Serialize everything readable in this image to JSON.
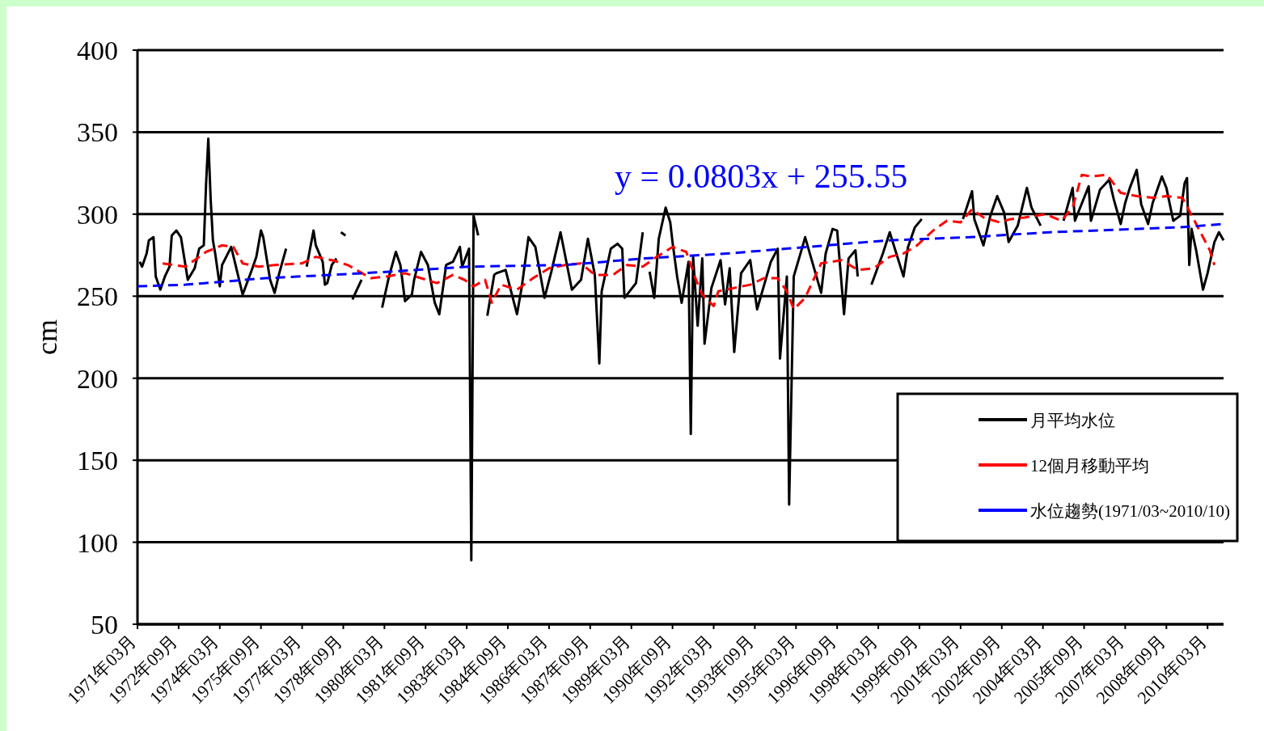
{
  "chart_data": {
    "type": "line",
    "ylabel": "cm",
    "annotations": [
      "y = 0.0803x + 255.55"
    ],
    "xlim": [
      "1971-03",
      "2010-10"
    ],
    "xticks": [
      {
        "value": "1971-03",
        "label": "1971年03月"
      },
      {
        "value": "1972-09",
        "label": "1972年09月"
      },
      {
        "value": "1974-03",
        "label": "1974年03月"
      },
      {
        "value": "1975-09",
        "label": "1975年09月"
      },
      {
        "value": "1977-03",
        "label": "1977年03月"
      },
      {
        "value": "1978-09",
        "label": "1978年09月"
      },
      {
        "value": "1980-03",
        "label": "1980年03月"
      },
      {
        "value": "1981-09",
        "label": "1981年09月"
      },
      {
        "value": "1983-03",
        "label": "1983年03月"
      },
      {
        "value": "1984-09",
        "label": "1984年09月"
      },
      {
        "value": "1986-03",
        "label": "1986年03月"
      },
      {
        "value": "1987-09",
        "label": "1987年09月"
      },
      {
        "value": "1989-03",
        "label": "1989年03月"
      },
      {
        "value": "1990-09",
        "label": "1990年09月"
      },
      {
        "value": "1992-03",
        "label": "1992年03月"
      },
      {
        "value": "1993-09",
        "label": "1993年09月"
      },
      {
        "value": "1995-03",
        "label": "1995年03月"
      },
      {
        "value": "1996-09",
        "label": "1996年09月"
      },
      {
        "value": "1998-03",
        "label": "1998年03月"
      },
      {
        "value": "1999-09",
        "label": "1999年09月"
      },
      {
        "value": "2001-03",
        "label": "2001年03月"
      },
      {
        "value": "2002-09",
        "label": "2002年09月"
      },
      {
        "value": "2004-03",
        "label": "2004年03月"
      },
      {
        "value": "2005-09",
        "label": "2005年09月"
      },
      {
        "value": "2007-03",
        "label": "2007年03月"
      },
      {
        "value": "2008-09",
        "label": "2008年09月"
      },
      {
        "value": "2010-03",
        "label": "2010年03月"
      }
    ],
    "ylim": [
      50,
      400
    ],
    "yticks": [
      50,
      100,
      150,
      200,
      250,
      300,
      350,
      400
    ],
    "grid": "y",
    "legend": "bottom right",
    "marker": "none",
    "series": [
      {
        "name": "月平均水位",
        "color": "#000000",
        "line_style": "solid",
        "x": [
          "1971-04",
          "1971-05",
          "1971-07",
          "1971-08",
          "1971-10",
          "1971-11",
          "1972-01",
          "1972-03",
          "1972-05",
          "1972-06",
          "1972-08",
          "1972-10",
          "1973-01",
          "1973-04",
          "1973-06",
          "1973-08",
          "1973-09",
          "1973-10",
          "1973-11",
          "1973-12",
          "1974-01",
          "1974-03",
          "1974-04",
          "1974-08",
          "1975-01",
          "1975-05",
          "1975-07",
          "1975-09",
          "1975-10",
          "1976-01",
          "1976-03",
          "1976-05",
          "1976-08",
          "1976-09",
          "1977-05",
          "1977-08",
          "1977-09",
          "1977-12",
          "1978-01",
          "1978-02",
          "1978-04",
          "1978-06",
          "1978-07",
          "1978-08",
          "1978-10",
          "1978-11",
          "1979-01",
          "1979-03",
          "1979-05",
          "1979-06",
          "1980-02",
          "1980-05",
          "1980-08",
          "1980-10",
          "1980-12",
          "1981-03",
          "1981-04",
          "1981-07",
          "1981-10",
          "1982-01",
          "1982-03",
          "1982-06",
          "1982-09",
          "1982-12",
          "1983-01",
          "1983-04",
          "1983-05",
          "1983-06",
          "1983-08",
          "1983-09",
          "1983-12",
          "1984-03",
          "1984-04",
          "1984-08",
          "1985-01",
          "1985-03",
          "1985-06",
          "1985-09",
          "1986-01",
          "1986-04",
          "1986-08",
          "1987-01",
          "1987-05",
          "1987-08",
          "1987-11",
          "1988-01",
          "1988-02",
          "1988-06",
          "1988-09",
          "1988-11",
          "1988-12",
          "1989-05",
          "1989-08",
          "1989-09",
          "1989-11",
          "1990-01",
          "1990-03",
          "1990-06",
          "1990-08",
          "1990-09",
          "1990-11",
          "1991-01",
          "1991-04",
          "1991-05",
          "1991-06",
          "1991-08",
          "1991-10",
          "1991-11",
          "1992-02",
          "1992-06",
          "1992-08",
          "1992-10",
          "1992-12",
          "1993-03",
          "1993-07",
          "1993-10",
          "1994-04",
          "1994-07",
          "1994-08",
          "1994-11",
          "1994-12",
          "1995-02",
          "1995-06",
          "1995-07",
          "1996-02",
          "1996-04",
          "1996-07",
          "1996-09",
          "1996-12",
          "1997-02",
          "1997-05",
          "1997-06",
          "1997-07",
          "1997-12",
          "1998-05",
          "1998-08",
          "1999-02",
          "1999-04",
          "1999-07",
          "1999-10",
          "1999-11",
          "2001-04",
          "2001-08",
          "2001-09",
          "2002-01",
          "2002-04",
          "2002-07",
          "2002-10",
          "2002-12",
          "2003-04",
          "2003-08",
          "2003-10",
          "2004-02",
          "2004-03",
          "2004-12",
          "2005-04",
          "2005-05",
          "2005-11",
          "2005-12",
          "2006-04",
          "2006-08",
          "2006-10",
          "2007-01",
          "2007-03",
          "2007-05",
          "2007-08",
          "2007-10",
          "2008-01",
          "2008-03",
          "2008-07",
          "2008-09",
          "2008-12",
          "2009-03",
          "2009-05",
          "2009-06",
          "2009-07",
          "2009-08",
          "2009-10",
          "2010-01",
          "2010-03",
          "2010-06",
          "2010-08",
          "2010-10"
        ],
        "values": [
          271,
          268,
          276,
          284,
          286,
          262,
          254,
          262,
          268,
          287,
          290,
          286,
          260,
          267,
          279,
          281,
          318,
          346,
          309,
          284,
          276,
          256,
          269,
          280,
          251,
          266,
          274,
          290,
          286,
          260,
          252,
          264,
          279,
          null,
          268,
          290,
          281,
          271,
          257,
          258,
          269,
          273,
          null,
          289,
          287,
          null,
          248,
          254,
          260,
          null,
          243,
          262,
          277,
          269,
          247,
          251,
          260,
          277,
          269,
          246,
          239,
          269,
          271,
          280,
          268,
          279,
          89,
          299,
          287,
          null,
          238,
          263,
          264,
          266,
          239,
          255,
          286,
          280,
          249,
          265,
          289,
          254,
          260,
          285,
          263,
          209,
          253,
          279,
          282,
          279,
          249,
          258,
          289,
          null,
          265,
          249,
          285,
          304,
          295,
          283,
          262,
          246,
          271,
          166,
          274,
          232,
          273,
          221,
          255,
          272,
          245,
          267,
          216,
          264,
          272,
          242,
          271,
          279,
          212,
          262,
          123,
          262,
          281,
          286,
          252,
          276,
          291,
          290,
          239,
          273,
          278,
          262,
          null,
          257,
          276,
          289,
          262,
          280,
          292,
          297,
          null,
          297,
          314,
          297,
          281,
          299,
          311,
          301,
          283,
          293,
          316,
          304,
          293,
          null,
          296,
          316,
          296,
          317,
          296,
          315,
          321,
          309,
          294,
          307,
          316,
          327,
          306,
          294,
          307,
          323,
          316,
          296,
          299,
          319,
          322,
          269,
          291,
          278,
          254,
          264,
          283,
          289,
          284
        ]
      },
      {
        "name": "12個月移動平均",
        "color": "#ff0000",
        "line_style": "dashed",
        "x": [
          "1972-02",
          "1972-12",
          "1973-09",
          "1974-04",
          "1974-09",
          "1975-01",
          "1975-08",
          "1976-03",
          "1977-03",
          "1977-09",
          "1978-04",
          "1978-11",
          "1979-04",
          "1979-09",
          "1980-04",
          "1980-12",
          "1981-07",
          "1982-02",
          "1982-09",
          "1983-02",
          "1983-06",
          "1983-11",
          "1984-02",
          "1984-06",
          "1985-01",
          "1985-08",
          "1986-03",
          "1986-10",
          "1987-05",
          "1987-11",
          "1988-07",
          "1989-01",
          "1989-08",
          "1990-01",
          "1990-09",
          "1991-03",
          "1991-07",
          "1991-10",
          "1992-03",
          "1992-05",
          "1992-12",
          "1993-07",
          "1994-01",
          "1994-07",
          "1994-11",
          "1995-02",
          "1995-07",
          "1995-09",
          "1996-02",
          "1996-11",
          "1997-06",
          "1998-01",
          "1998-08",
          "1999-02",
          "1999-08",
          "2000-03",
          "2000-09",
          "2001-03",
          "2001-08",
          "2002-01",
          "2002-08",
          "2003-01",
          "2003-07",
          "2004-04",
          "2004-11",
          "2005-04",
          "2005-08",
          "2005-12",
          "2006-07",
          "2007-01",
          "2007-08",
          "2008-03",
          "2008-09",
          "2009-04",
          "2009-07",
          "2009-10",
          "2010-01",
          "2010-04",
          "2010-06"
        ],
        "values": [
          270,
          268,
          277,
          281,
          280,
          270,
          268,
          269,
          270,
          274,
          272,
          269,
          265,
          261,
          262,
          264,
          261,
          258,
          263,
          260,
          256,
          260,
          246,
          257,
          254,
          261,
          267,
          269,
          270,
          263,
          263,
          269,
          268,
          273,
          280,
          277,
          261,
          251,
          244,
          253,
          255,
          257,
          261,
          261,
          253,
          242,
          249,
          255,
          270,
          272,
          266,
          267,
          274,
          276,
          281,
          290,
          296,
          295,
          303,
          298,
          295,
          297,
          298,
          300,
          296,
          304,
          324,
          323,
          324,
          313,
          311,
          310,
          311,
          310,
          302,
          294,
          286,
          278,
          269
        ]
      },
      {
        "name": "水位趨勢(1971/03~2010/10)",
        "color": "#0000ff",
        "line_style": "dashed",
        "x": [
          "1971-03",
          "1972-12",
          "1975-11",
          "1979-06",
          "1983-04",
          "1986-10",
          "1989-09",
          "1992-09",
          "1995-08",
          "1998-07",
          "2001-07",
          "2004-06",
          "2009-03",
          "2010-10"
        ],
        "values": [
          256,
          257,
          261,
          264,
          268,
          269,
          273,
          276,
          280,
          284,
          286,
          289,
          292,
          294
        ]
      }
    ]
  }
}
